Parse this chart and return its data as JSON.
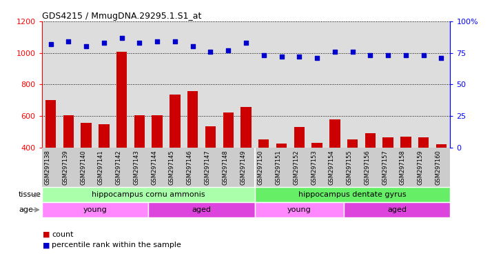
{
  "title": "GDS4215 / MmugDNA.29295.1.S1_at",
  "samples": [
    "GSM297138",
    "GSM297139",
    "GSM297140",
    "GSM297141",
    "GSM297142",
    "GSM297143",
    "GSM297144",
    "GSM297145",
    "GSM297146",
    "GSM297147",
    "GSM297148",
    "GSM297149",
    "GSM297150",
    "GSM297151",
    "GSM297152",
    "GSM297153",
    "GSM297154",
    "GSM297155",
    "GSM297156",
    "GSM297157",
    "GSM297158",
    "GSM297159",
    "GSM297160"
  ],
  "counts": [
    700,
    607,
    557,
    548,
    1005,
    607,
    607,
    737,
    760,
    535,
    623,
    658,
    452,
    425,
    530,
    430,
    580,
    452,
    493,
    465,
    468,
    467,
    420
  ],
  "percentiles": [
    82,
    84,
    80,
    83,
    87,
    83,
    84,
    84,
    80,
    76,
    77,
    83,
    73,
    72,
    72,
    71,
    76,
    76,
    73,
    73,
    73,
    73,
    71
  ],
  "bar_color": "#CC0000",
  "dot_color": "#0000CC",
  "ylim_left": [
    400,
    1200
  ],
  "ylim_right": [
    0,
    100
  ],
  "yticks_left": [
    400,
    600,
    800,
    1000,
    1200
  ],
  "yticks_right": [
    0,
    25,
    50,
    75,
    100
  ],
  "tissue_groups": [
    {
      "label": "hippocampus cornu ammonis",
      "start": 0,
      "end": 12,
      "color": "#AAFFAA"
    },
    {
      "label": "hippocampus dentate gyrus",
      "start": 12,
      "end": 23,
      "color": "#66EE66"
    }
  ],
  "age_groups": [
    {
      "label": "young",
      "start": 0,
      "end": 6,
      "color": "#FF88FF"
    },
    {
      "label": "aged",
      "start": 6,
      "end": 12,
      "color": "#DD44DD"
    },
    {
      "label": "young",
      "start": 12,
      "end": 17,
      "color": "#FF88FF"
    },
    {
      "label": "aged",
      "start": 17,
      "end": 23,
      "color": "#DD44DD"
    }
  ],
  "tissue_label": "tissue",
  "age_label": "age",
  "legend_count_label": "count",
  "legend_pct_label": "percentile rank within the sample",
  "bg_color": "#DDDDDD",
  "grid_color": "#000000",
  "xtick_bg": "#CCCCCC"
}
